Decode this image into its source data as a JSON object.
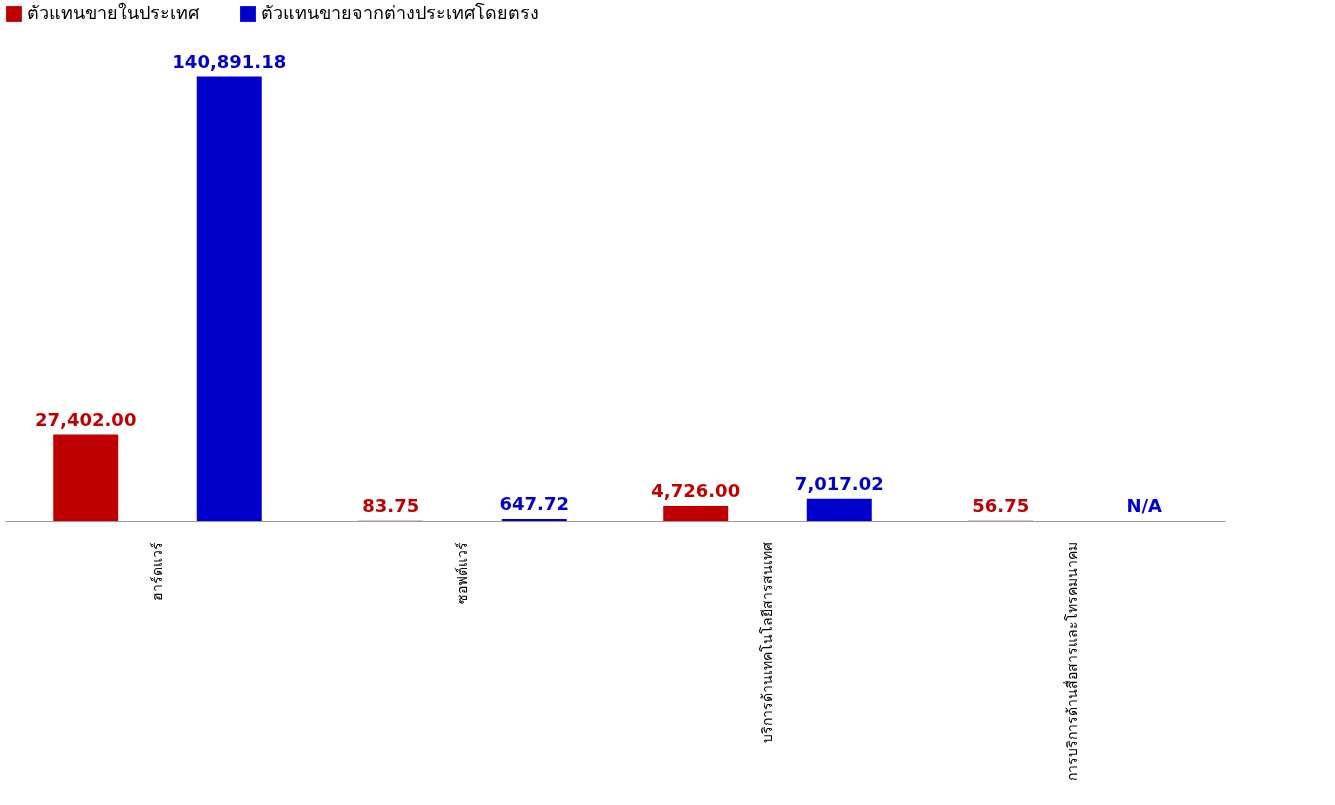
{
  "chart_data": {
    "type": "bar",
    "categories": [
      "ฮาร์ดแวร์",
      "ซอฟต์แวร์",
      "บริการด้านเทคโนโลยีสารสนเทศ",
      "การบริการด้านสื่อสารและโทรคมนาคม"
    ],
    "series": [
      {
        "name": "ตัวแทนขายในประเทศ",
        "color": "#c00000",
        "values": [
          27402.0,
          83.75,
          4726.0,
          56.75
        ],
        "value_labels": [
          "27,402.00",
          "83.75",
          "4,726.00",
          "56.75"
        ]
      },
      {
        "name": "ตัวแทนขายจากต่างประเทศโดยตรง",
        "color": "#0000cc",
        "values": [
          140891.18,
          647.72,
          7017.02,
          null
        ],
        "value_labels": [
          "140,891.18",
          "647.72",
          "7,017.02",
          "N/A"
        ]
      }
    ],
    "legend": "top",
    "grid": false
  }
}
